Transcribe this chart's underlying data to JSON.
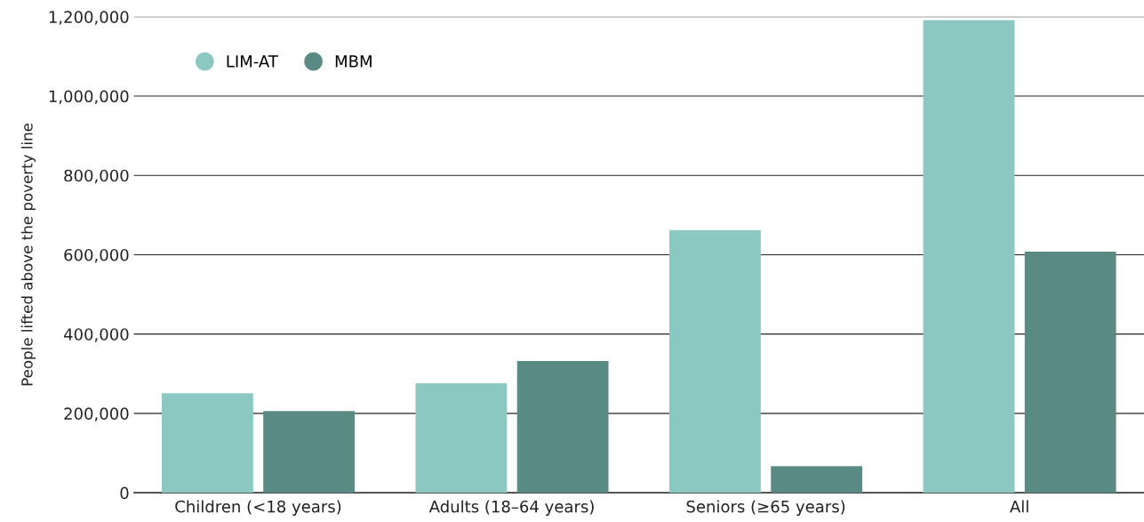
{
  "chart_data": {
    "type": "bar",
    "ylabel": "People lifted above the poverty line",
    "categories": [
      "Children (<18 years)",
      "Adults (18–64 years)",
      "Seniors (≥65 years)",
      "All"
    ],
    "series": [
      {
        "name": "LIM-AT",
        "color": "#8cc8c2",
        "values": [
          251000,
          276000,
          662000,
          1191000
        ]
      },
      {
        "name": "MBM",
        "color": "#5a8a84",
        "values": [
          206000,
          332000,
          67000,
          608000
        ]
      }
    ],
    "ylim": [
      0,
      1200000
    ],
    "yticks": [
      {
        "value": 0,
        "label": "0"
      },
      {
        "value": 200000,
        "label": "200,000"
      },
      {
        "value": 400000,
        "label": "400,000"
      },
      {
        "value": 600000,
        "label": "600,000"
      },
      {
        "value": 800000,
        "label": "800,000"
      },
      {
        "value": 1000000,
        "label": "1,000,000"
      },
      {
        "value": 1200000,
        "label": "1,200,000"
      }
    ],
    "grid": "y",
    "legend": "top left"
  }
}
